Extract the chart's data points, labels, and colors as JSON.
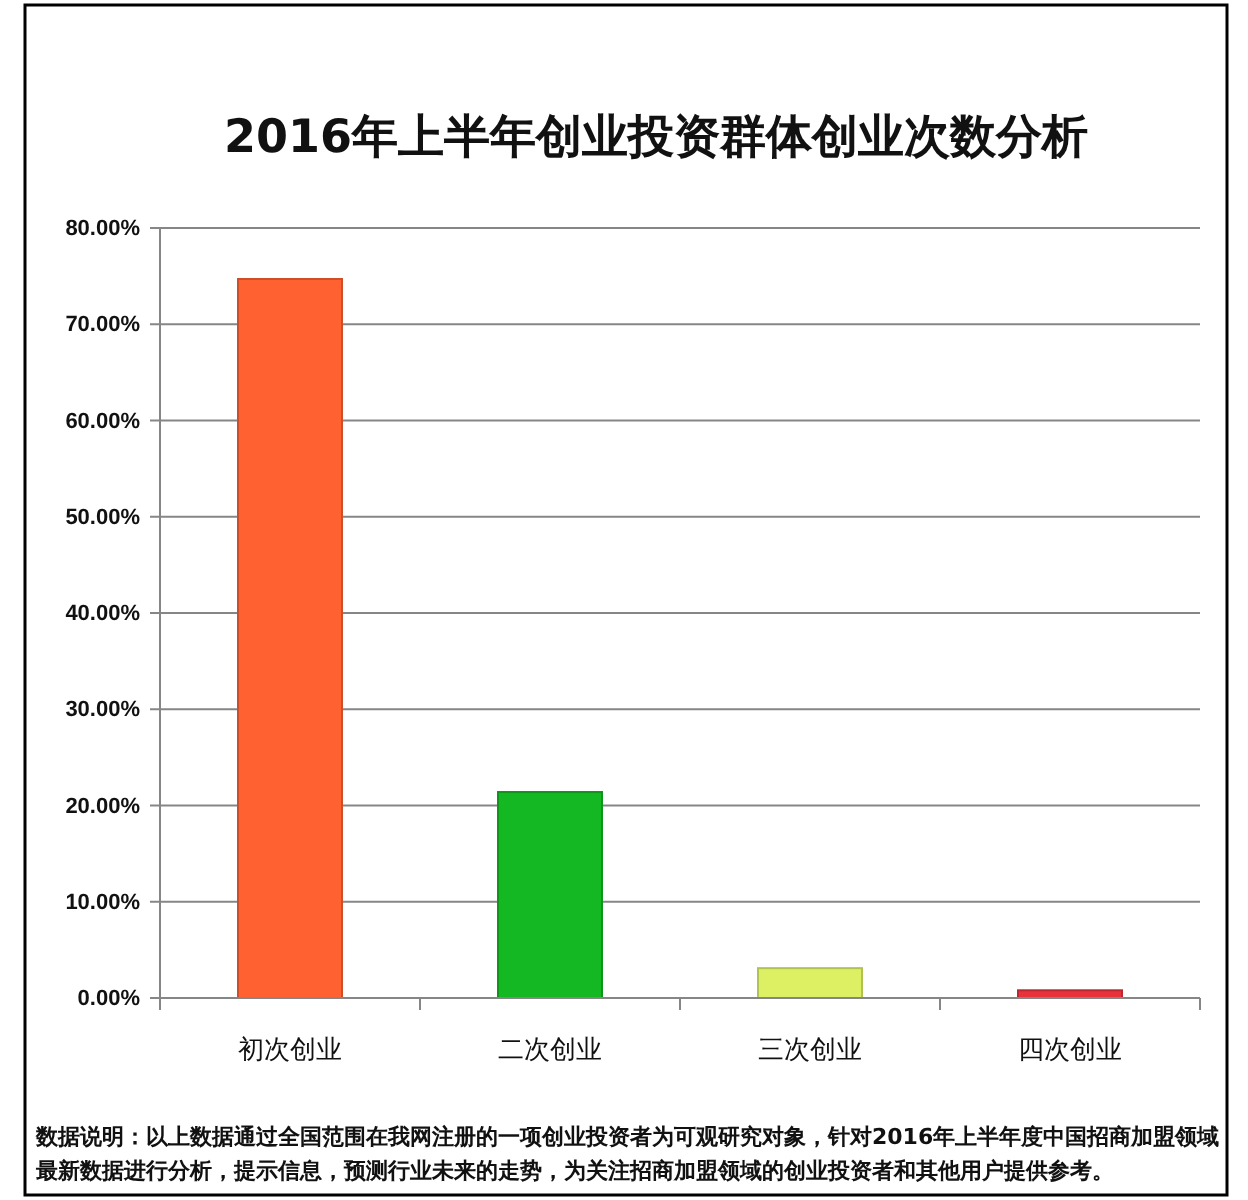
{
  "chart_data": {
    "type": "bar",
    "title": "2016年上半年创业投资群体创业次数分析",
    "categories": [
      "初次创业",
      "二次创业",
      "三次创业",
      "四次创业"
    ],
    "values": [
      74.7,
      21.4,
      3.1,
      0.8
    ],
    "colors": [
      "#ff6130",
      "#13b823",
      "#ddf063",
      "#e8323c"
    ],
    "ylim": [
      0,
      80
    ],
    "yticks": [
      {
        "value": 0,
        "label": "0.00%"
      },
      {
        "value": 10,
        "label": "10.00%"
      },
      {
        "value": 20,
        "label": "20.00%"
      },
      {
        "value": 30,
        "label": "30.00%"
      },
      {
        "value": 40,
        "label": "40.00%"
      },
      {
        "value": 50,
        "label": "50.00%"
      },
      {
        "value": 60,
        "label": "60.00%"
      },
      {
        "value": 70,
        "label": "70.00%"
      },
      {
        "value": 80,
        "label": "80.00%"
      }
    ],
    "grid": "y",
    "annotations": [
      "数据说明：以上数据通过全国范围在我网注册的一项创业投资者为可观研究对象，针对2016年上半年度中国招商加盟领域最新数据进行分析，提示信息，预测行业未来的走势，为关注招商加盟领域的创业投资者和其他用户提供参考。"
    ]
  }
}
